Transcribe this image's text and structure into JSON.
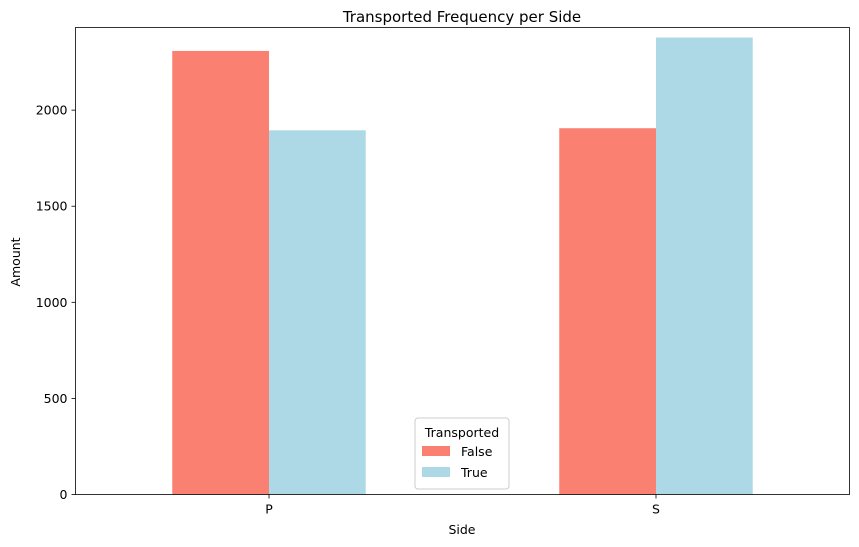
{
  "chart_data": {
    "type": "bar",
    "title": "Transported Frequency per Side",
    "xlabel": "Side",
    "ylabel": "Amount",
    "categories": [
      "P",
      "S"
    ],
    "series": [
      {
        "name": "False",
        "color": "#fa8072",
        "values": [
          2308,
          1906
        ]
      },
      {
        "name": "True",
        "color": "#add8e6",
        "values": [
          1895,
          2378
        ]
      }
    ],
    "ylim": [
      0,
      2430
    ],
    "yticks": [
      0,
      500,
      1000,
      1500,
      2000
    ],
    "ytick_labels": [
      "0",
      "500",
      "1000",
      "1500",
      "2000"
    ],
    "grid": false,
    "legend": {
      "title": "Transported",
      "placement": "lower-center"
    }
  }
}
